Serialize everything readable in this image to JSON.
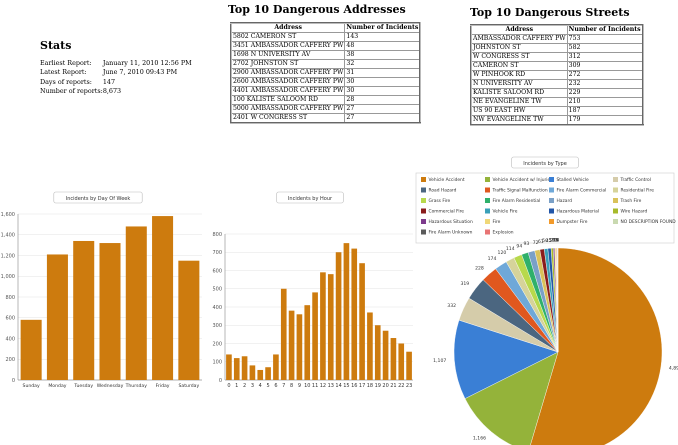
{
  "stats": {
    "title": "Stats",
    "rows": [
      {
        "label": "Earliest Report:",
        "value": "January 11, 2010 12:56 PM"
      },
      {
        "label": "Latest Report:",
        "value": "June 7, 2010 09:43 PM"
      },
      {
        "label": "Days of reports:",
        "value": "147"
      },
      {
        "label": "Number of reports:",
        "value": "8,673"
      }
    ]
  },
  "addresses": {
    "title": "Top 10 Dangerous Addresses",
    "headers": [
      "Address",
      "Number of Incidents"
    ],
    "rows": [
      [
        "5802 CAMERON ST",
        "143"
      ],
      [
        "3451 AMBASSADOR CAFFERY PW",
        "48"
      ],
      [
        "1698 N UNIVERSITY AV",
        "38"
      ],
      [
        "2702 JOHNSTON ST",
        "32"
      ],
      [
        "2900 AMBASSADOR CAFFERY PW",
        "31"
      ],
      [
        "2600 AMBASSADOR CAFFERY PW",
        "30"
      ],
      [
        "4401 AMBASSADOR CAFFERY PW",
        "30"
      ],
      [
        "100 KALISTE SALOOM RD",
        "28"
      ],
      [
        "5000 AMBASSADOR CAFFERY PW",
        "27"
      ],
      [
        "2401 W CONGRESS ST",
        "27"
      ]
    ]
  },
  "streets": {
    "title": "Top 10 Dangerous Streets",
    "headers": [
      "Address",
      "Number of Incidents"
    ],
    "rows": [
      [
        "AMBASSADOR CAFFERY PW",
        "753"
      ],
      [
        "JOHNSTON ST",
        "582"
      ],
      [
        "W CONGRESS ST",
        "312"
      ],
      [
        "CAMERON ST",
        "309"
      ],
      [
        "W PINHOOK RD",
        "272"
      ],
      [
        "N UNIVERSITY AV",
        "232"
      ],
      [
        "KALISTE SALOOM RD",
        "229"
      ],
      [
        "NE EVANGELINE TW",
        "210"
      ],
      [
        "US 90 EAST HW",
        "187"
      ],
      [
        "NW EVANGELINE TW",
        "179"
      ]
    ]
  },
  "chart_data": [
    {
      "type": "bar",
      "title": "Incidents by Day Of Week",
      "categories": [
        "Sunday",
        "Monday",
        "Tuesday",
        "Wednesday",
        "Thursday",
        "Friday",
        "Saturday"
      ],
      "values": [
        580,
        1210,
        1340,
        1320,
        1480,
        1580,
        1150
      ],
      "ylim": [
        0,
        1600
      ],
      "yticks": [
        "0",
        "200",
        "400",
        "600",
        "800",
        "1,000",
        "1,200",
        "1,400",
        "1,600"
      ],
      "ytick_values": [
        0,
        200,
        400,
        600,
        800,
        1000,
        1200,
        1400,
        1600
      ],
      "color": "#cd7b0e",
      "grid": true
    },
    {
      "type": "bar",
      "title": "Incidents by Hour",
      "categories": [
        "0",
        "1",
        "2",
        "3",
        "4",
        "5",
        "6",
        "7",
        "8",
        "9",
        "10",
        "11",
        "12",
        "13",
        "14",
        "15",
        "16",
        "17",
        "18",
        "19",
        "20",
        "21",
        "22",
        "23"
      ],
      "values": [
        140,
        120,
        130,
        80,
        55,
        70,
        140,
        500,
        380,
        360,
        410,
        480,
        590,
        580,
        700,
        750,
        720,
        640,
        370,
        300,
        270,
        230,
        200,
        155
      ],
      "ylim": [
        0,
        800
      ],
      "yticks": [
        "0",
        "100",
        "200",
        "300",
        "400",
        "500",
        "600",
        "700",
        "800"
      ],
      "ytick_values": [
        0,
        100,
        200,
        300,
        400,
        500,
        600,
        700,
        800
      ],
      "color": "#cd7b0e",
      "grid": true
    },
    {
      "type": "pie",
      "title": "Incidents by Type",
      "legend_position": "top",
      "series": [
        {
          "name": "Vehicle Accident",
          "value": 4894,
          "color": "#cd7b0e",
          "label": "4,894"
        },
        {
          "name": "Vehicle Accident w/ Injuries",
          "value": 1166,
          "color": "#94b33a",
          "label": "1,166"
        },
        {
          "name": "Stalled Vehicle",
          "value": 1107,
          "color": "#3a7fd5",
          "label": "1,107"
        },
        {
          "name": "Traffic Control",
          "value": 332,
          "color": "#d5ccaa",
          "label": "332"
        },
        {
          "name": "Road Hazard",
          "value": 319,
          "color": "#4b6680",
          "label": "319"
        },
        {
          "name": "Traffic Signal Malfunction",
          "value": 228,
          "color": "#e0581f",
          "label": "228"
        },
        {
          "name": "Fire Alarm Commercial",
          "value": 174,
          "color": "#6fa8d8",
          "label": "174"
        },
        {
          "name": "Residential Fire",
          "value": 120,
          "color": "#d6d39a",
          "label": "120"
        },
        {
          "name": "Grass Fire",
          "value": 114,
          "color": "#b8d94c",
          "label": "114"
        },
        {
          "name": "Fire Alarm Residential",
          "value": 94,
          "color": "#2fb06a",
          "label": "94"
        },
        {
          "name": "Hazard",
          "value": 93,
          "color": "#7aa0c7",
          "label": "93"
        },
        {
          "name": "Trash Fire",
          "value": 72,
          "color": "#d9c25a",
          "label": "72"
        },
        {
          "name": "Commercial Fire",
          "value": 61,
          "color": "#8a1c1c",
          "label": "61"
        },
        {
          "name": "Vehicle Fire",
          "value": 50,
          "color": "#3aa0b8",
          "label": "50"
        },
        {
          "name": "Hazardous Material",
          "value": 45,
          "color": "#2256a8",
          "label": "45"
        },
        {
          "name": "Wire Hazard",
          "value": 30,
          "color": "#a7ba2a",
          "label": "30"
        },
        {
          "name": "Hazardous Situation",
          "value": 20,
          "color": "#7d3a8c",
          "label": "20"
        },
        {
          "name": "Fire",
          "value": 15,
          "color": "#f0d878",
          "label": "15"
        },
        {
          "name": "Dumpster Fire",
          "value": 12,
          "color": "#f29a2a",
          "label": "12"
        },
        {
          "name": "NO DESCRIPTION FOUND",
          "value": 8,
          "color": "#c9d9b0",
          "label": "8"
        },
        {
          "name": "Fire Alarm Unknown",
          "value": 6,
          "color": "#5a5a5a",
          "label": "6"
        },
        {
          "name": "Explosion",
          "value": 4,
          "color": "#e87474",
          "label": "4"
        }
      ]
    }
  ]
}
